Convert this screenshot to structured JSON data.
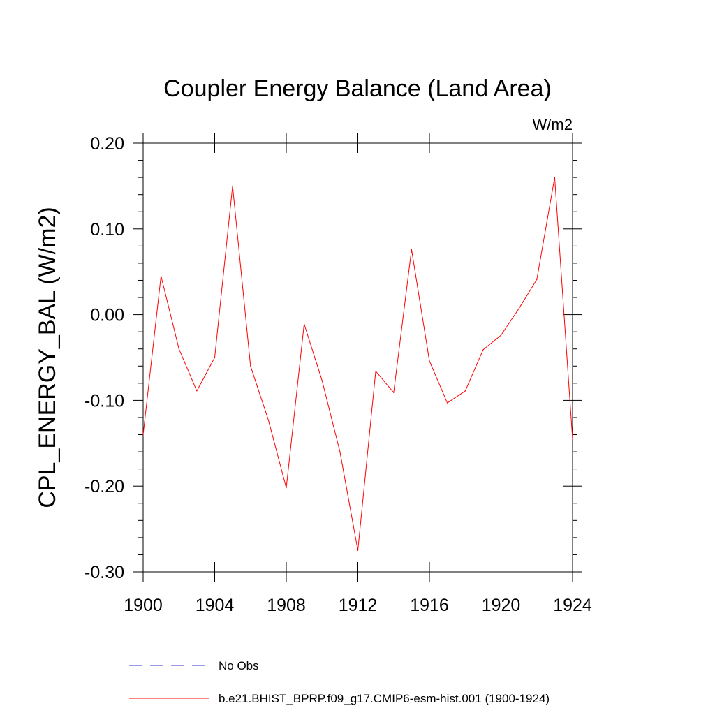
{
  "chart_data": {
    "type": "line",
    "title": "Coupler Energy Balance (Land Area)",
    "units_label": "W/m2",
    "ylabel": "CPL_ENERGY_BAL  (W/m2)",
    "xlabel": "",
    "xlim": [
      1900,
      1924
    ],
    "ylim": [
      -0.3,
      0.2
    ],
    "x_ticks": [
      1900,
      1904,
      1908,
      1912,
      1916,
      1920,
      1924
    ],
    "x_tick_labels": [
      "1900",
      "1904",
      "1908",
      "1912",
      "1916",
      "1920",
      "1924"
    ],
    "y_ticks": [
      0.2,
      0.1,
      0.0,
      -0.1,
      -0.2,
      -0.3
    ],
    "y_tick_labels": [
      "0.20",
      "0.10",
      "0.00",
      "-0.10",
      "-0.20",
      "-0.30"
    ],
    "grid": false,
    "legend_position": "bottom",
    "series": [
      {
        "name": "b.e21.BHIST_BPRP.f09_g17.CMIP6-esm-hist.001 (1900-1924)",
        "color": "#ff0000",
        "dash": "solid",
        "x": [
          1900,
          1901,
          1902,
          1903,
          1904,
          1905,
          1906,
          1907,
          1908,
          1909,
          1910,
          1911,
          1912,
          1913,
          1914,
          1915,
          1916,
          1917,
          1918,
          1919,
          1920,
          1921,
          1922,
          1923,
          1924
        ],
        "values": [
          -0.14,
          0.045,
          -0.04,
          -0.089,
          -0.05,
          0.15,
          -0.06,
          -0.123,
          -0.202,
          -0.011,
          -0.077,
          -0.16,
          -0.275,
          -0.066,
          -0.091,
          0.076,
          -0.054,
          -0.103,
          -0.089,
          -0.041,
          -0.024,
          0.007,
          0.041,
          0.16,
          -0.145
        ]
      }
    ],
    "legend": [
      {
        "name": "No Obs",
        "color": "#3333cc",
        "dash": "dashed"
      },
      {
        "name": "b.e21.BHIST_BPRP.f09_g17.CMIP6-esm-hist.001 (1900-1924)",
        "color": "#ff0000",
        "dash": "solid"
      }
    ]
  }
}
